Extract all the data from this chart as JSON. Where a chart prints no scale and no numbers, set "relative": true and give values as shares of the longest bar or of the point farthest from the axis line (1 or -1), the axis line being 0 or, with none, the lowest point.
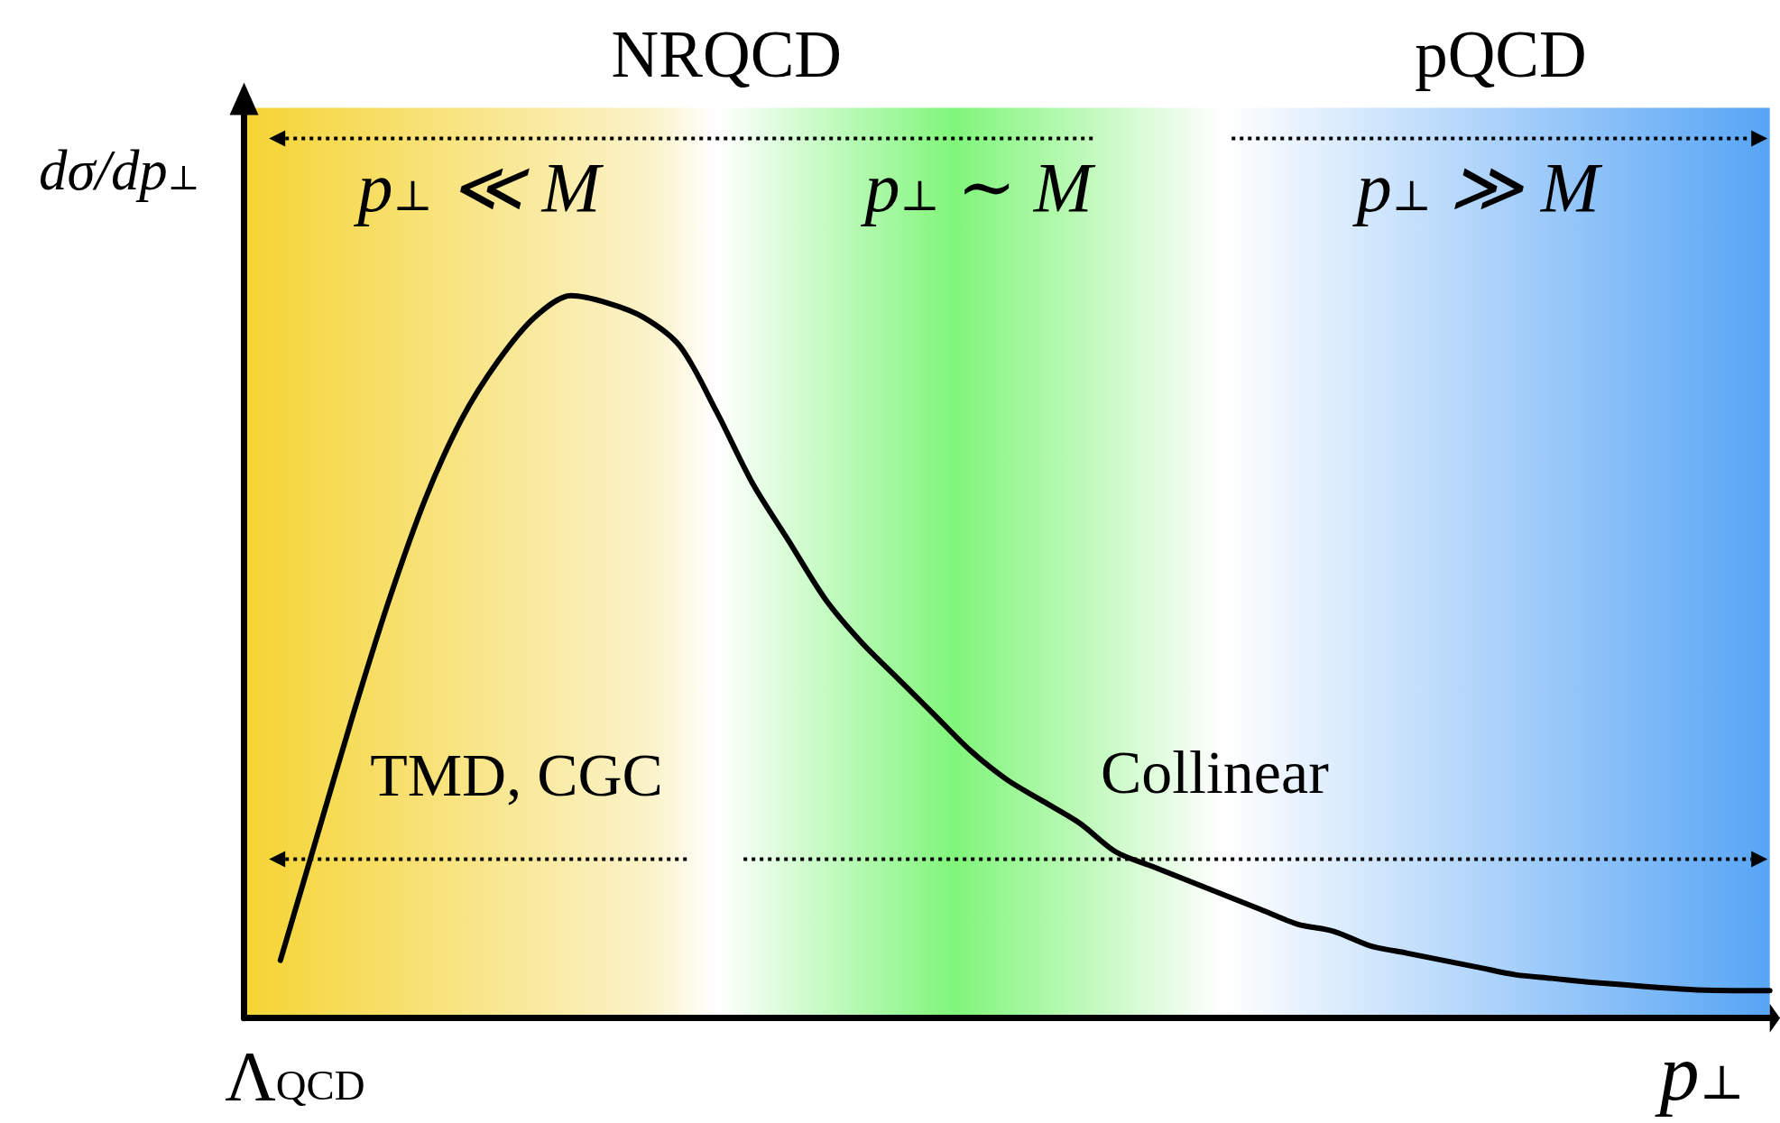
{
  "chart_data": {
    "type": "line",
    "relative": true,
    "categories": [
      null,
      null,
      null,
      null,
      null,
      null,
      null,
      null,
      null,
      null,
      null,
      null,
      null,
      null,
      null,
      null,
      null,
      null,
      null,
      null,
      null,
      null,
      null,
      null,
      null,
      null,
      null,
      null,
      null,
      null,
      null,
      null,
      null,
      null,
      null,
      null,
      null,
      null,
      null,
      null,
      null,
      null,
      null
    ],
    "series": [
      {
        "color": "#000000",
        "values": [
          null,
          0.08,
          0.25,
          0.42,
          0.58,
          0.72,
          0.83,
          0.91,
          0.97,
          1,
          0.99,
          0.97,
          0.93,
          0.84,
          0.74,
          0.66,
          0.58,
          0.52,
          0.47,
          0.42,
          0.37,
          0.33,
          0.3,
          0.27,
          0.23,
          0.21,
          0.19,
          0.17,
          0.15,
          0.13,
          0.12,
          0.1,
          0.09,
          0.08,
          0.07,
          0.06,
          0.055,
          0.05,
          0.046,
          0.042,
          0.039,
          0.038,
          0.038
        ]
      }
    ],
    "xlabel": "p$_{⊥}$",
    "ylabel": "dσ/dp$_{⊥}$",
    "annotations": [
      "NRQCD",
      "pQCD",
      "p$_{⊥}$ ≪ M",
      "p$_{⊥}$ ∼ M",
      "p$_{⊥}$ ≫ M",
      "TMD, CGC",
      "Collinear",
      "Λ$_{QCD}$"
    ],
    "marker": "none",
    "line_style": "solid",
    "grid": false
  }
}
